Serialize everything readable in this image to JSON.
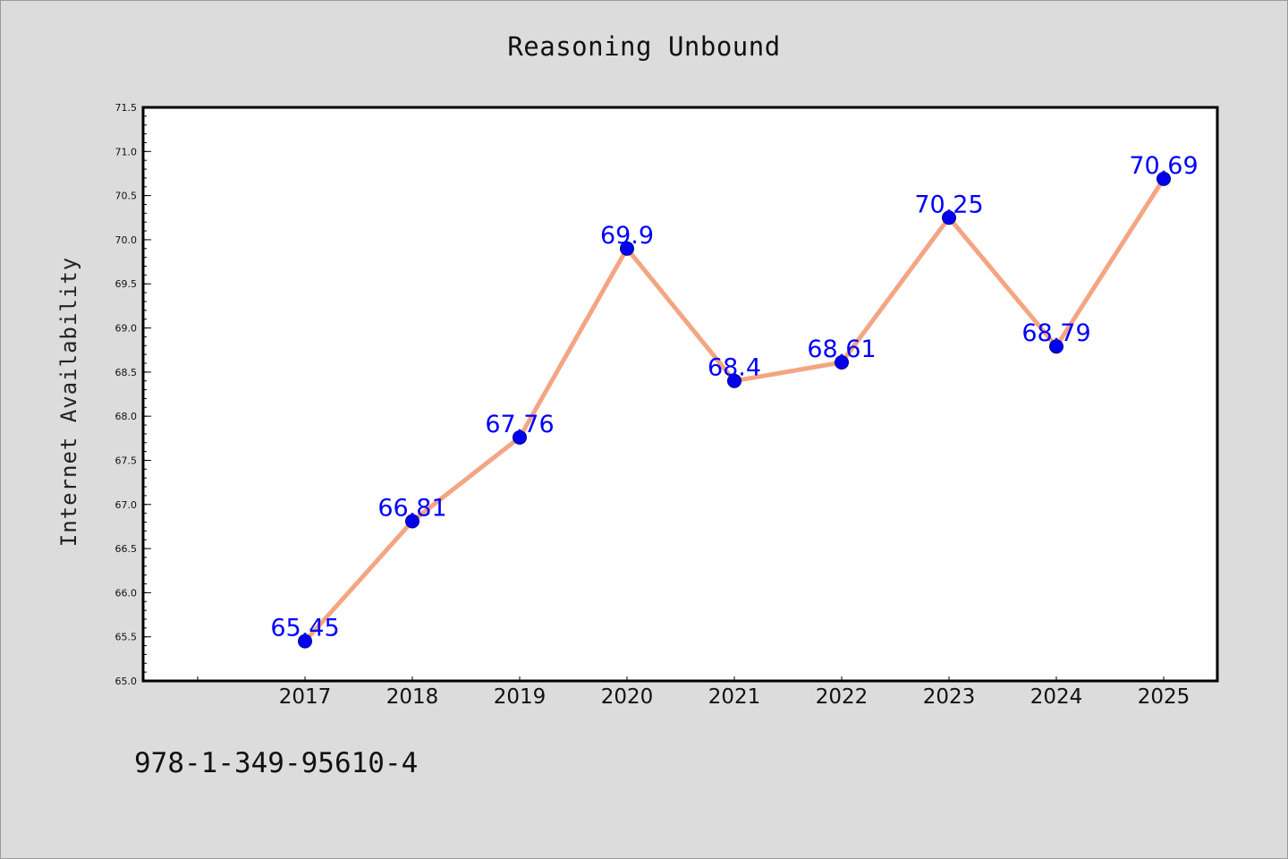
{
  "chart_data": {
    "type": "line",
    "title": "Reasoning Unbound",
    "xlabel": "",
    "ylabel": "Internet Availability",
    "categories": [
      "2017",
      "2018",
      "2019",
      "2020",
      "2021",
      "2022",
      "2023",
      "2024",
      "2025"
    ],
    "series": [
      {
        "values": [
          65.45,
          66.81,
          67.76,
          69.9,
          68.4,
          68.61,
          70.25,
          68.79,
          70.69
        ],
        "labels": [
          "65.45",
          "66.81",
          "67.76",
          "69.9",
          "68.4",
          "68.61",
          "70.25",
          "68.79",
          "70.69"
        ]
      }
    ],
    "ylim": [
      65.0,
      71.5
    ],
    "yticks": [
      "65.0",
      "65.5",
      "66.0",
      "66.5",
      "67.0",
      "67.5",
      "68.0",
      "68.5",
      "69.0",
      "69.5",
      "70.0",
      "70.5",
      "71.0",
      "71.5"
    ],
    "grid": false,
    "colors": {
      "line": "#f4a582",
      "marker": "#0000ee",
      "label": "#0000ff"
    }
  },
  "footer": {
    "isbn": "978-1-349-95610-4"
  }
}
